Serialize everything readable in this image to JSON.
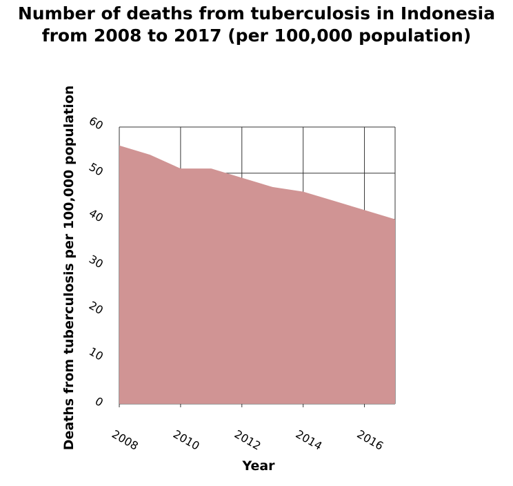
{
  "chart_data": {
    "type": "area",
    "title_lines": [
      "Number of deaths from tuberculosis in Indonesia",
      "from 2008 to 2017 (per 100,000 population)"
    ],
    "xlabel": "Year",
    "ylabel": "Deaths from tuberculosis per 100,000 population",
    "x": [
      2008,
      2009,
      2010,
      2011,
      2012,
      2013,
      2014,
      2015,
      2016,
      2017
    ],
    "values": [
      56,
      54,
      51,
      51,
      49,
      47,
      46,
      44,
      42,
      40
    ],
    "xlim": [
      2008,
      2017
    ],
    "ylim": [
      0,
      60
    ],
    "xticks": [
      2008,
      2010,
      2012,
      2014,
      2016
    ],
    "yticks": [
      0,
      10,
      20,
      30,
      40,
      50,
      60
    ],
    "fill_color": "#d09494",
    "grid": true
  }
}
